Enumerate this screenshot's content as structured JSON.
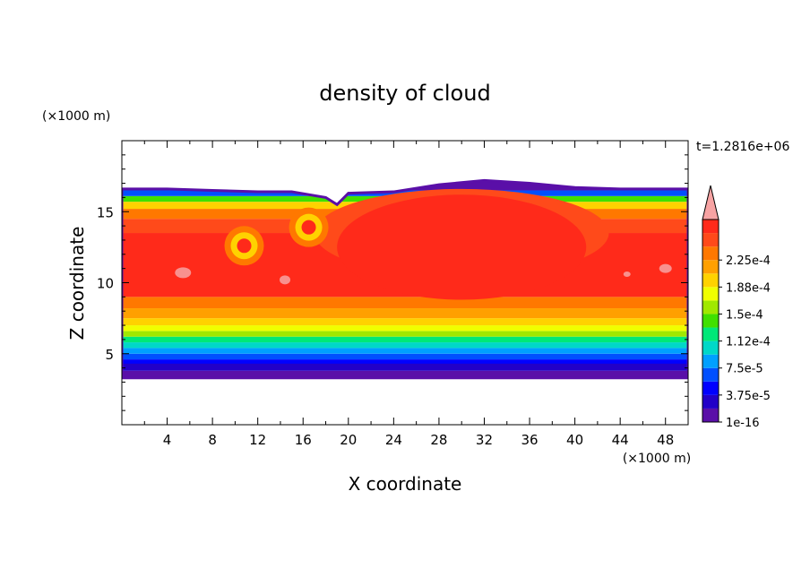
{
  "chart_data": {
    "type": "heatmap",
    "title": "density of cloud",
    "xlabel": "X coordinate",
    "ylabel": "Z coordinate",
    "x_unit": "(×1000 m)",
    "y_unit": "(×1000 m)",
    "time_label": "t=1.2816e+06",
    "xlim": [
      0,
      50
    ],
    "ylim": [
      0,
      20
    ],
    "x_ticks": [
      "4",
      "8",
      "12",
      "16",
      "20",
      "24",
      "28",
      "32",
      "36",
      "40",
      "44",
      "48"
    ],
    "y_ticks": [
      "5",
      "10",
      "15"
    ],
    "colorbar": {
      "levels": [
        "1e-16",
        "3.75e-5",
        "7.5e-5",
        "1.12e-4",
        "1.5e-4",
        "1.88e-4",
        "2.25e-4"
      ],
      "extend": "max",
      "colors": [
        "#5a0fa8",
        "#2200c8",
        "#0000ff",
        "#0050ff",
        "#00a0ff",
        "#00d8c8",
        "#00e878",
        "#40e000",
        "#a0e800",
        "#f0ff00",
        "#ffd200",
        "#ffa000",
        "#ff7800",
        "#ff4a1a",
        "#ff2a1a",
        "#f7a3a3"
      ]
    },
    "field": {
      "cloud_bottom_km": 3.3,
      "cloud_top_km": [
        [
          0,
          16.6
        ],
        [
          4,
          16.6
        ],
        [
          8,
          16.5
        ],
        [
          12,
          16.4
        ],
        [
          15,
          16.4
        ],
        [
          18,
          16.0
        ],
        [
          19,
          15.5
        ],
        [
          20,
          16.3
        ],
        [
          24,
          16.4
        ],
        [
          28,
          16.9
        ],
        [
          32,
          17.2
        ],
        [
          36,
          17.0
        ],
        [
          40,
          16.7
        ],
        [
          44,
          16.6
        ],
        [
          48,
          16.6
        ],
        [
          50,
          16.6
        ]
      ],
      "eddies": [
        {
          "x": 10.8,
          "z": 12.6
        },
        {
          "x": 16.5,
          "z": 13.9
        }
      ]
    }
  }
}
